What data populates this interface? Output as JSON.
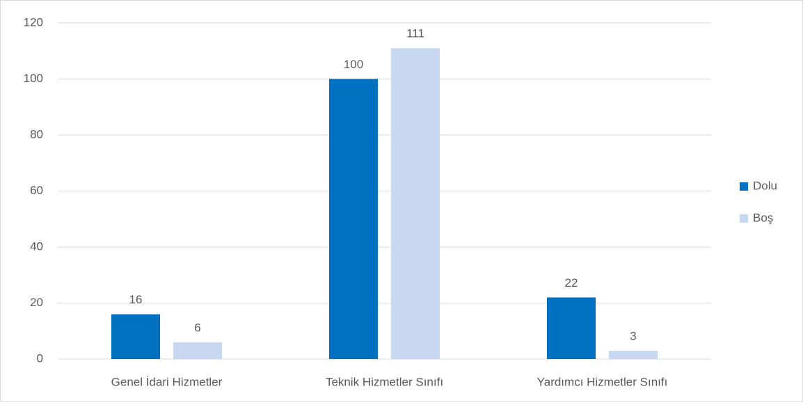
{
  "chart_data": {
    "type": "bar",
    "categories": [
      "Genel İdari Hizmetler",
      "Teknik Hizmetler Sınıfı",
      "Yardımcı Hizmetler Sınıfı"
    ],
    "series": [
      {
        "name": "Dolu",
        "color": "#0070c0",
        "values": [
          16,
          100,
          22
        ]
      },
      {
        "name": "Boş",
        "color": "#c6d7ef",
        "values": [
          6,
          111,
          3
        ]
      }
    ],
    "ylim": [
      0,
      120
    ],
    "yticks": [
      0,
      20,
      40,
      60,
      80,
      100,
      120
    ],
    "grid": true,
    "legend": "right"
  }
}
